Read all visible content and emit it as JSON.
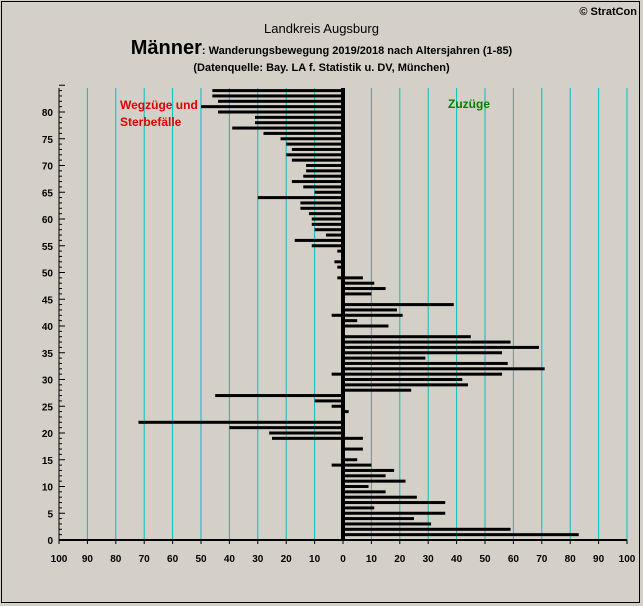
{
  "copyright": "© StratCon",
  "title": "Landkreis Augsburg",
  "subtitle_main": "Männer",
  "subtitle_rest": ": Wanderungsbewegung 2019/2018 nach Altersjahren (1-85)",
  "source": "(Datenquelle: Bay. LA f. Statistik u. DV, München)",
  "left_label": "Wegzüge und\nSterbefälle",
  "right_label": "Zuzüge",
  "colors": {
    "background": "#d4d0c8",
    "gridline": "#00c0c0",
    "bar": "#000000",
    "left_label": "#e00000",
    "right_label": "#008000"
  },
  "chart_data": {
    "type": "bar",
    "orientation": "horizontal",
    "xlim": [
      -100,
      100
    ],
    "ylim": [
      0,
      85
    ],
    "x_tick_labels": [
      "100",
      "90",
      "80",
      "70",
      "60",
      "50",
      "40",
      "30",
      "20",
      "10",
      "0",
      "10",
      "20",
      "30",
      "40",
      "50",
      "60",
      "70",
      "80",
      "90",
      "100"
    ],
    "y_tick_labels": [
      "0",
      "5",
      "10",
      "15",
      "20",
      "25",
      "30",
      "35",
      "40",
      "45",
      "50",
      "55",
      "60",
      "65",
      "70",
      "75",
      "80"
    ],
    "grid": true,
    "series": [
      {
        "name": "Zuzüge",
        "side": "right",
        "ages": [
          1,
          2,
          3,
          4,
          5,
          6,
          7,
          8,
          9,
          10,
          11,
          12,
          13,
          14,
          15,
          16,
          17,
          18,
          19,
          20,
          21,
          22,
          23,
          24,
          25,
          26,
          27,
          28,
          29,
          30,
          31,
          32,
          33,
          34,
          35,
          36,
          37,
          38,
          39,
          40,
          41,
          42,
          43,
          44,
          45,
          46,
          47,
          48,
          49,
          50
        ],
        "values": [
          83,
          59,
          31,
          25,
          36,
          11,
          36,
          26,
          15,
          9,
          22,
          15,
          18,
          10,
          5,
          0,
          7,
          0,
          7,
          0,
          0,
          0,
          0,
          2,
          0,
          0,
          0,
          24,
          44,
          42,
          56,
          71,
          58,
          29,
          56,
          69,
          59,
          45,
          0,
          16,
          5,
          21,
          19,
          39,
          0,
          10,
          15,
          11,
          7,
          0
        ]
      },
      {
        "name": "Wegzüge und Sterbefälle",
        "side": "left",
        "ages": [
          14,
          19,
          20,
          21,
          22,
          23,
          24,
          25,
          26,
          27,
          28,
          29,
          30,
          31,
          40,
          41,
          42,
          46,
          47,
          48,
          49,
          50,
          51,
          52,
          53,
          54,
          55,
          56,
          57,
          58,
          59,
          60,
          61,
          62,
          63,
          64,
          65,
          66,
          67,
          68,
          69,
          70,
          71,
          72,
          73,
          74,
          75,
          76,
          77,
          78,
          79,
          80,
          81,
          82,
          83,
          84
        ],
        "values": [
          4,
          25,
          26,
          40,
          72,
          0,
          0,
          4,
          10,
          45,
          0,
          0,
          0,
          4,
          0,
          0,
          4,
          0,
          0,
          0,
          2,
          0,
          2,
          3,
          0,
          2,
          11,
          17,
          6,
          10,
          11,
          11,
          12,
          15,
          15,
          30,
          10,
          14,
          18,
          14,
          13,
          13,
          18,
          20,
          18,
          20,
          22,
          28,
          39,
          31,
          31,
          44,
          50,
          44,
          46,
          46
        ]
      }
    ]
  }
}
